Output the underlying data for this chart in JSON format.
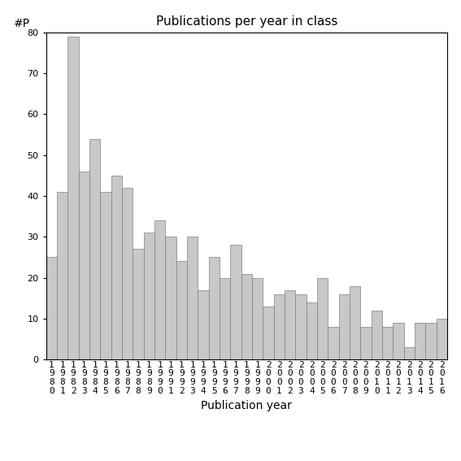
{
  "title": "Publications per year in class",
  "xlabel": "Publication year",
  "ylabel": "#P",
  "years": [
    1980,
    1981,
    1982,
    1983,
    1984,
    1985,
    1986,
    1987,
    1988,
    1989,
    1990,
    1991,
    1992,
    1993,
    1994,
    1995,
    1996,
    1997,
    1998,
    1999,
    2000,
    2001,
    2002,
    2003,
    2004,
    2005,
    2006,
    2007,
    2008,
    2009,
    2010,
    2011,
    2012,
    2013,
    2014,
    2015,
    2016
  ],
  "values": [
    25,
    41,
    79,
    46,
    54,
    41,
    45,
    42,
    27,
    31,
    34,
    30,
    24,
    30,
    17,
    25,
    20,
    28,
    21,
    20,
    13,
    16,
    17,
    16,
    14,
    20,
    8,
    16,
    18,
    8,
    12,
    8,
    9,
    3,
    9,
    9,
    10
  ],
  "bar_color": "#c8c8c8",
  "bar_edge_color": "#808080",
  "ylim": [
    0,
    80
  ],
  "yticks": [
    0,
    10,
    20,
    30,
    40,
    50,
    60,
    70,
    80
  ],
  "background_color": "#ffffff",
  "title_fontsize": 11,
  "xlabel_fontsize": 10,
  "ylabel_fontsize": 10,
  "tick_fontsize": 8
}
